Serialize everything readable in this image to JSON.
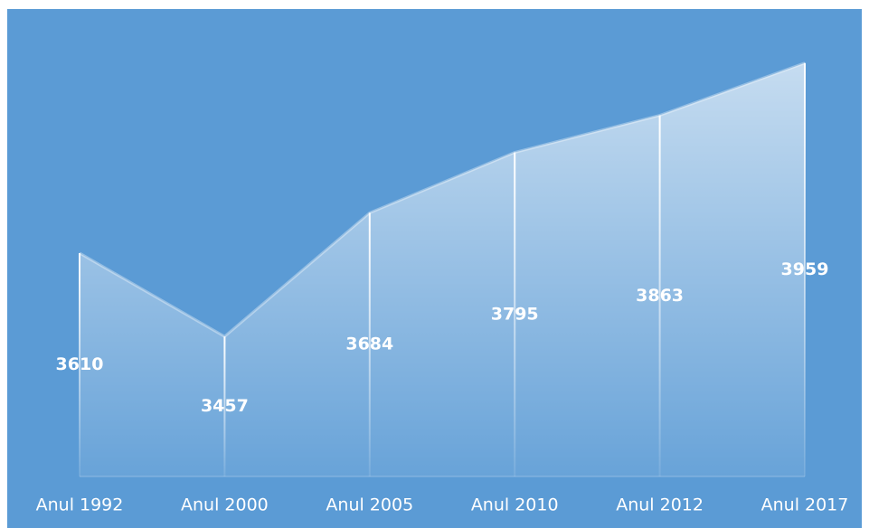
{
  "chart_data": {
    "type": "area",
    "categories": [
      "Anul 1992",
      "Anul 2000",
      "Anul 2005",
      "Anul 2010",
      "Anul 2012",
      "Anul 2017"
    ],
    "values": [
      3610,
      3457,
      3684,
      3795,
      3863,
      3959
    ],
    "color": "#ffffff",
    "background": "#5b9bd5",
    "ylim": [
      3200,
      4000
    ]
  }
}
